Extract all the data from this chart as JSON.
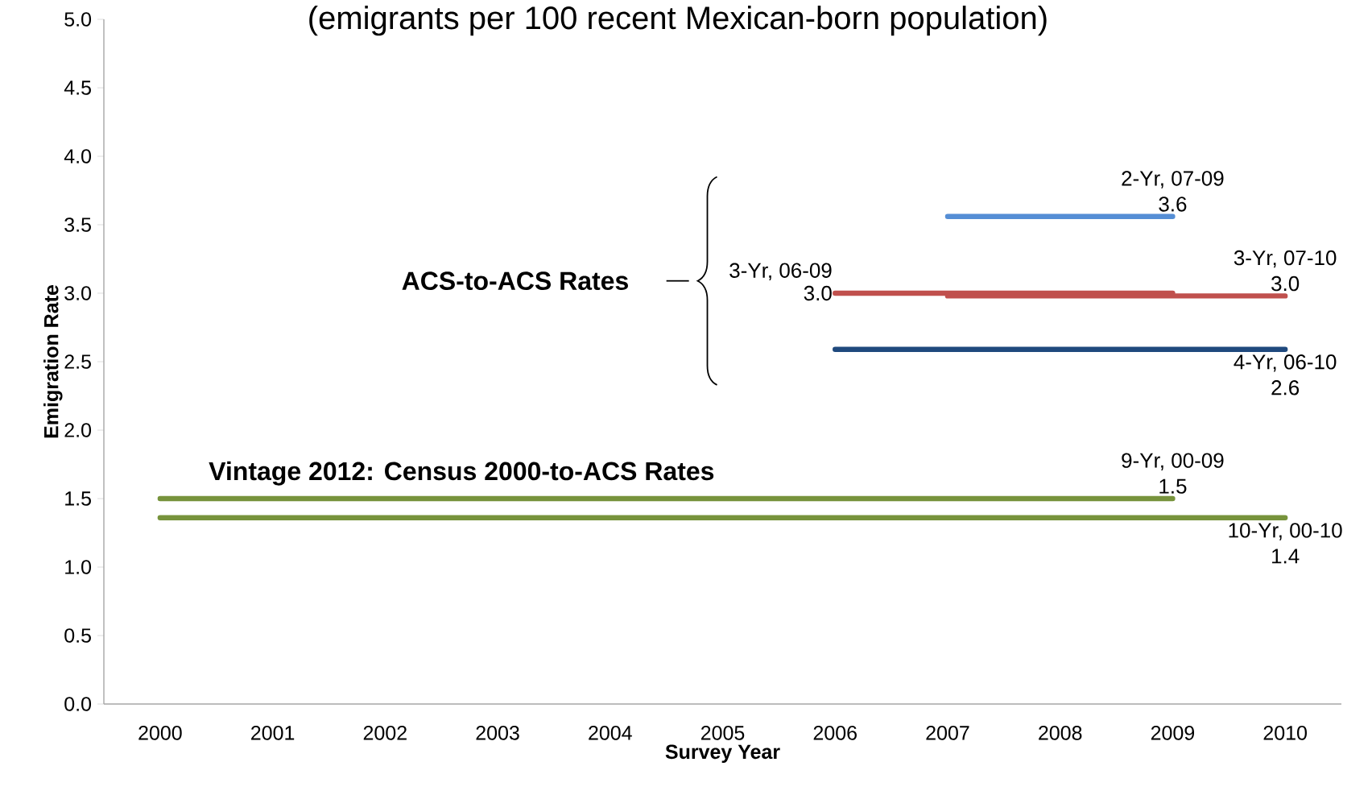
{
  "chart_data": {
    "type": "line",
    "title": "(emigrants per 100 recent Mexican-born population)",
    "xlabel": "Survey Year",
    "ylabel": "Emigration Rate",
    "xlim": [
      1999.5,
      2010.5
    ],
    "xticks": [
      2000,
      2001,
      2002,
      2003,
      2004,
      2005,
      2006,
      2007,
      2008,
      2009,
      2010
    ],
    "ylim": [
      0,
      5
    ],
    "yticks": [
      {
        "value": 0,
        "label": "0.0"
      },
      {
        "value": 0.5,
        "label": "0.5"
      },
      {
        "value": 1,
        "label": "1.0"
      },
      {
        "value": 1.5,
        "label": "1.5"
      },
      {
        "value": 2,
        "label": "2.0"
      },
      {
        "value": 2.5,
        "label": "2.5"
      },
      {
        "value": 3,
        "label": "3.0"
      },
      {
        "value": 3.5,
        "label": "3.5"
      },
      {
        "value": 4,
        "label": "4.0"
      },
      {
        "value": 4.5,
        "label": "4.5"
      },
      {
        "value": 5,
        "label": "5.0"
      }
    ],
    "series": [
      {
        "name": "2-Yr, 07-09",
        "color": "#558ed5",
        "x": [
          2007,
          2009
        ],
        "values": [
          3.56,
          3.56
        ],
        "value_labels": [
          null,
          "3.6"
        ]
      },
      {
        "name": "3-Yr, 06-09",
        "color": "#c0504d",
        "x": [
          2006,
          2009
        ],
        "values": [
          3.0,
          3.0
        ],
        "value_labels": [
          "3.0",
          null
        ]
      },
      {
        "name": "3-Yr, 07-10",
        "color": "#c0504d",
        "x": [
          2007,
          2010
        ],
        "values": [
          2.98,
          2.98
        ],
        "value_labels": [
          null,
          "3.0"
        ]
      },
      {
        "name": "4-Yr, 06-10",
        "color": "#1f497d",
        "x": [
          2006,
          2010
        ],
        "values": [
          2.59,
          2.59
        ],
        "value_labels": [
          null,
          "2.6"
        ]
      },
      {
        "name": "9-Yr, 00-09",
        "color": "#77933c",
        "x": [
          2000,
          2009
        ],
        "values": [
          1.5,
          1.5
        ],
        "value_labels": [
          null,
          "1.5"
        ]
      },
      {
        "name": "10-Yr, 00-10",
        "color": "#77933c",
        "x": [
          2000,
          2010
        ],
        "values": [
          1.36,
          1.36
        ],
        "value_labels": [
          null,
          "1.4"
        ]
      }
    ],
    "annotations": [
      "ACS-to-ACS Rates",
      "Vintage 2012: Census 2000-to-ACS Rates"
    ]
  }
}
